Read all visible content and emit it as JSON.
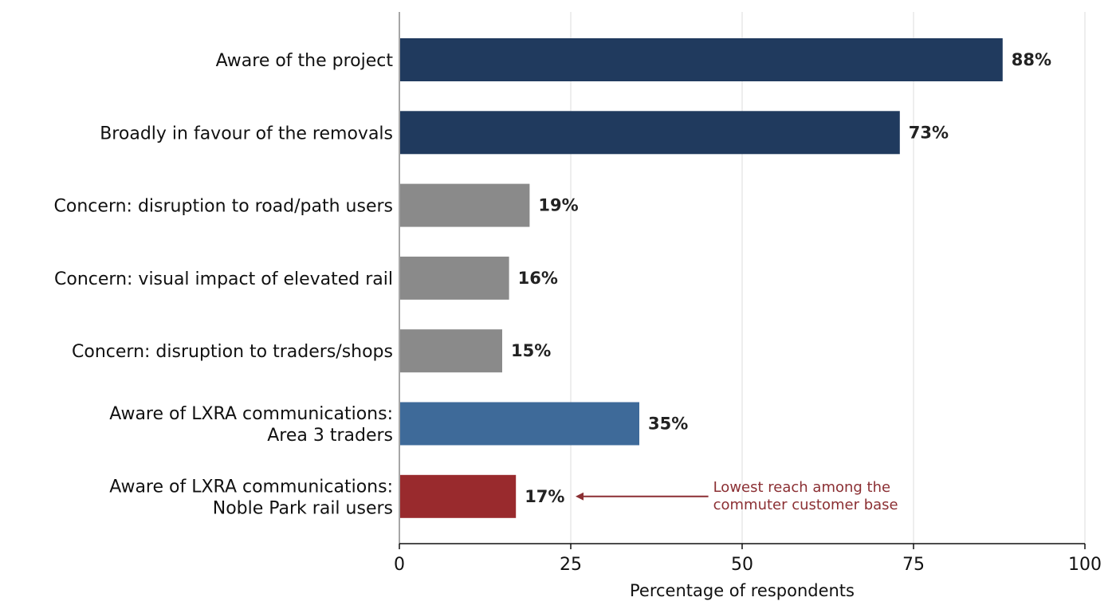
{
  "chart_data": {
    "type": "bar",
    "orientation": "horizontal",
    "title": "",
    "xlabel": "Percentage of respondents",
    "ylabel": "",
    "xlim": [
      0,
      100
    ],
    "xticks": [
      0,
      25,
      50,
      75,
      100
    ],
    "xtick_labels": [
      "0",
      "25",
      "50",
      "75",
      "100"
    ],
    "grid": "vertical",
    "categories": [
      "Aware of the project",
      "Broadly in favour of the removals",
      "Concern: disruption to road/path users",
      "Concern: visual impact of elevated rail",
      "Concern: disruption to traders/shops",
      "Aware of LXRA communications:\nArea 3 traders",
      "Aware of LXRA communications:\nNoble Park rail users"
    ],
    "values": [
      88,
      73,
      19,
      16,
      15,
      35,
      17
    ],
    "value_labels": [
      "88%",
      "73%",
      "19%",
      "16%",
      "15%",
      "35%",
      "17%"
    ],
    "bar_colors": [
      "#203a5e",
      "#203a5e",
      "#8a8a8a",
      "#8a8a8a",
      "#8a8a8a",
      "#3e6a99",
      "#992a2d"
    ],
    "annotation": {
      "text_lines": [
        "Lowest reach among the",
        "commuter customer base"
      ],
      "color": "#8b2f33",
      "target_category_index": 6,
      "arrow_tip_value": 25,
      "text_value": 46
    }
  }
}
